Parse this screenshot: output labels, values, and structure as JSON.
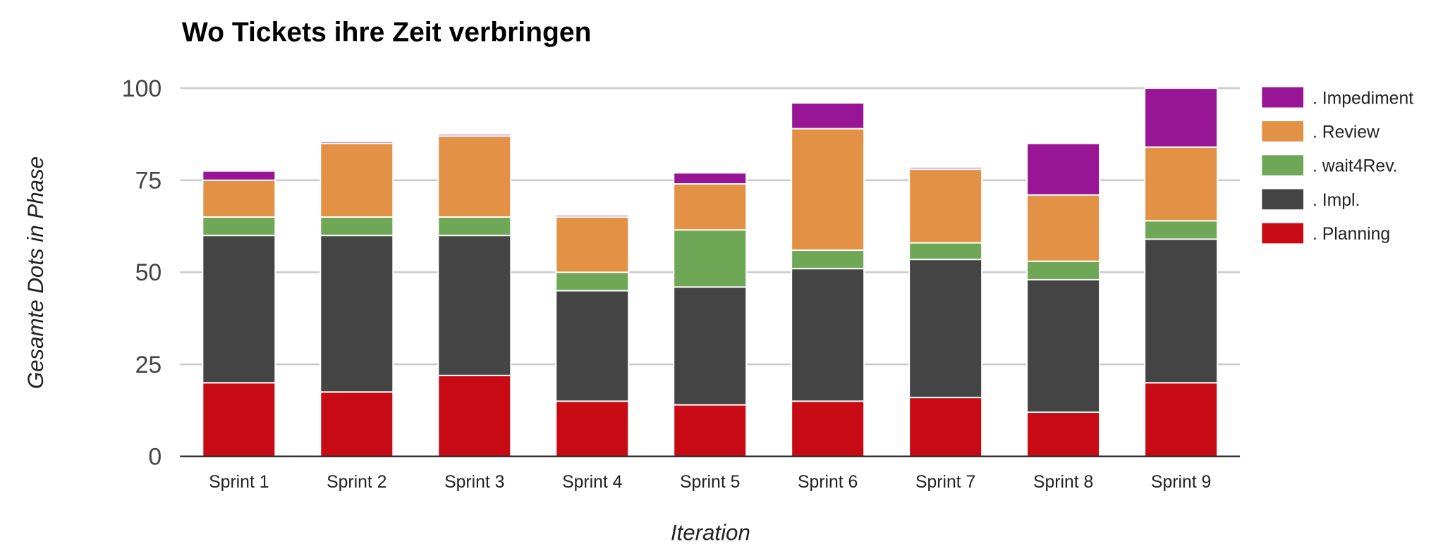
{
  "chart_data": {
    "type": "bar",
    "stacked": true,
    "title": "Wo Tickets ihre Zeit verbringen",
    "xlabel": "Iteration",
    "ylabel": "Gesamte Dots in Phase",
    "ylim": [
      0,
      100
    ],
    "yticks": [
      "0",
      "25",
      "50",
      "75",
      "100"
    ],
    "grid": true,
    "legend_position": "right",
    "categories": [
      "Sprint 1",
      "Sprint 2",
      "Sprint 3",
      "Sprint 4",
      "Sprint 5",
      "Sprint 6",
      "Sprint 7",
      "Sprint 8",
      "Sprint 9"
    ],
    "series": [
      {
        "name": ". Planning",
        "color": "#c80a15",
        "values": [
          20,
          17.5,
          22,
          15,
          14,
          15,
          16,
          12,
          20
        ]
      },
      {
        "name": ". Impl.",
        "color": "#444444",
        "values": [
          40,
          42.5,
          38,
          30,
          32,
          36,
          37.5,
          36,
          39
        ]
      },
      {
        "name": ". wait4Rev.",
        "color": "#6ea755",
        "values": [
          5,
          5,
          5,
          5,
          15.5,
          5,
          4.5,
          5,
          5
        ]
      },
      {
        "name": ". Review",
        "color": "#e39144",
        "values": [
          10,
          20,
          22,
          15,
          12.5,
          33,
          20,
          18,
          20
        ]
      },
      {
        "name": ". Impediment",
        "color": "#981696",
        "values": [
          2.5,
          0.5,
          0.5,
          0.5,
          3,
          7,
          0.5,
          14,
          16
        ]
      }
    ]
  }
}
